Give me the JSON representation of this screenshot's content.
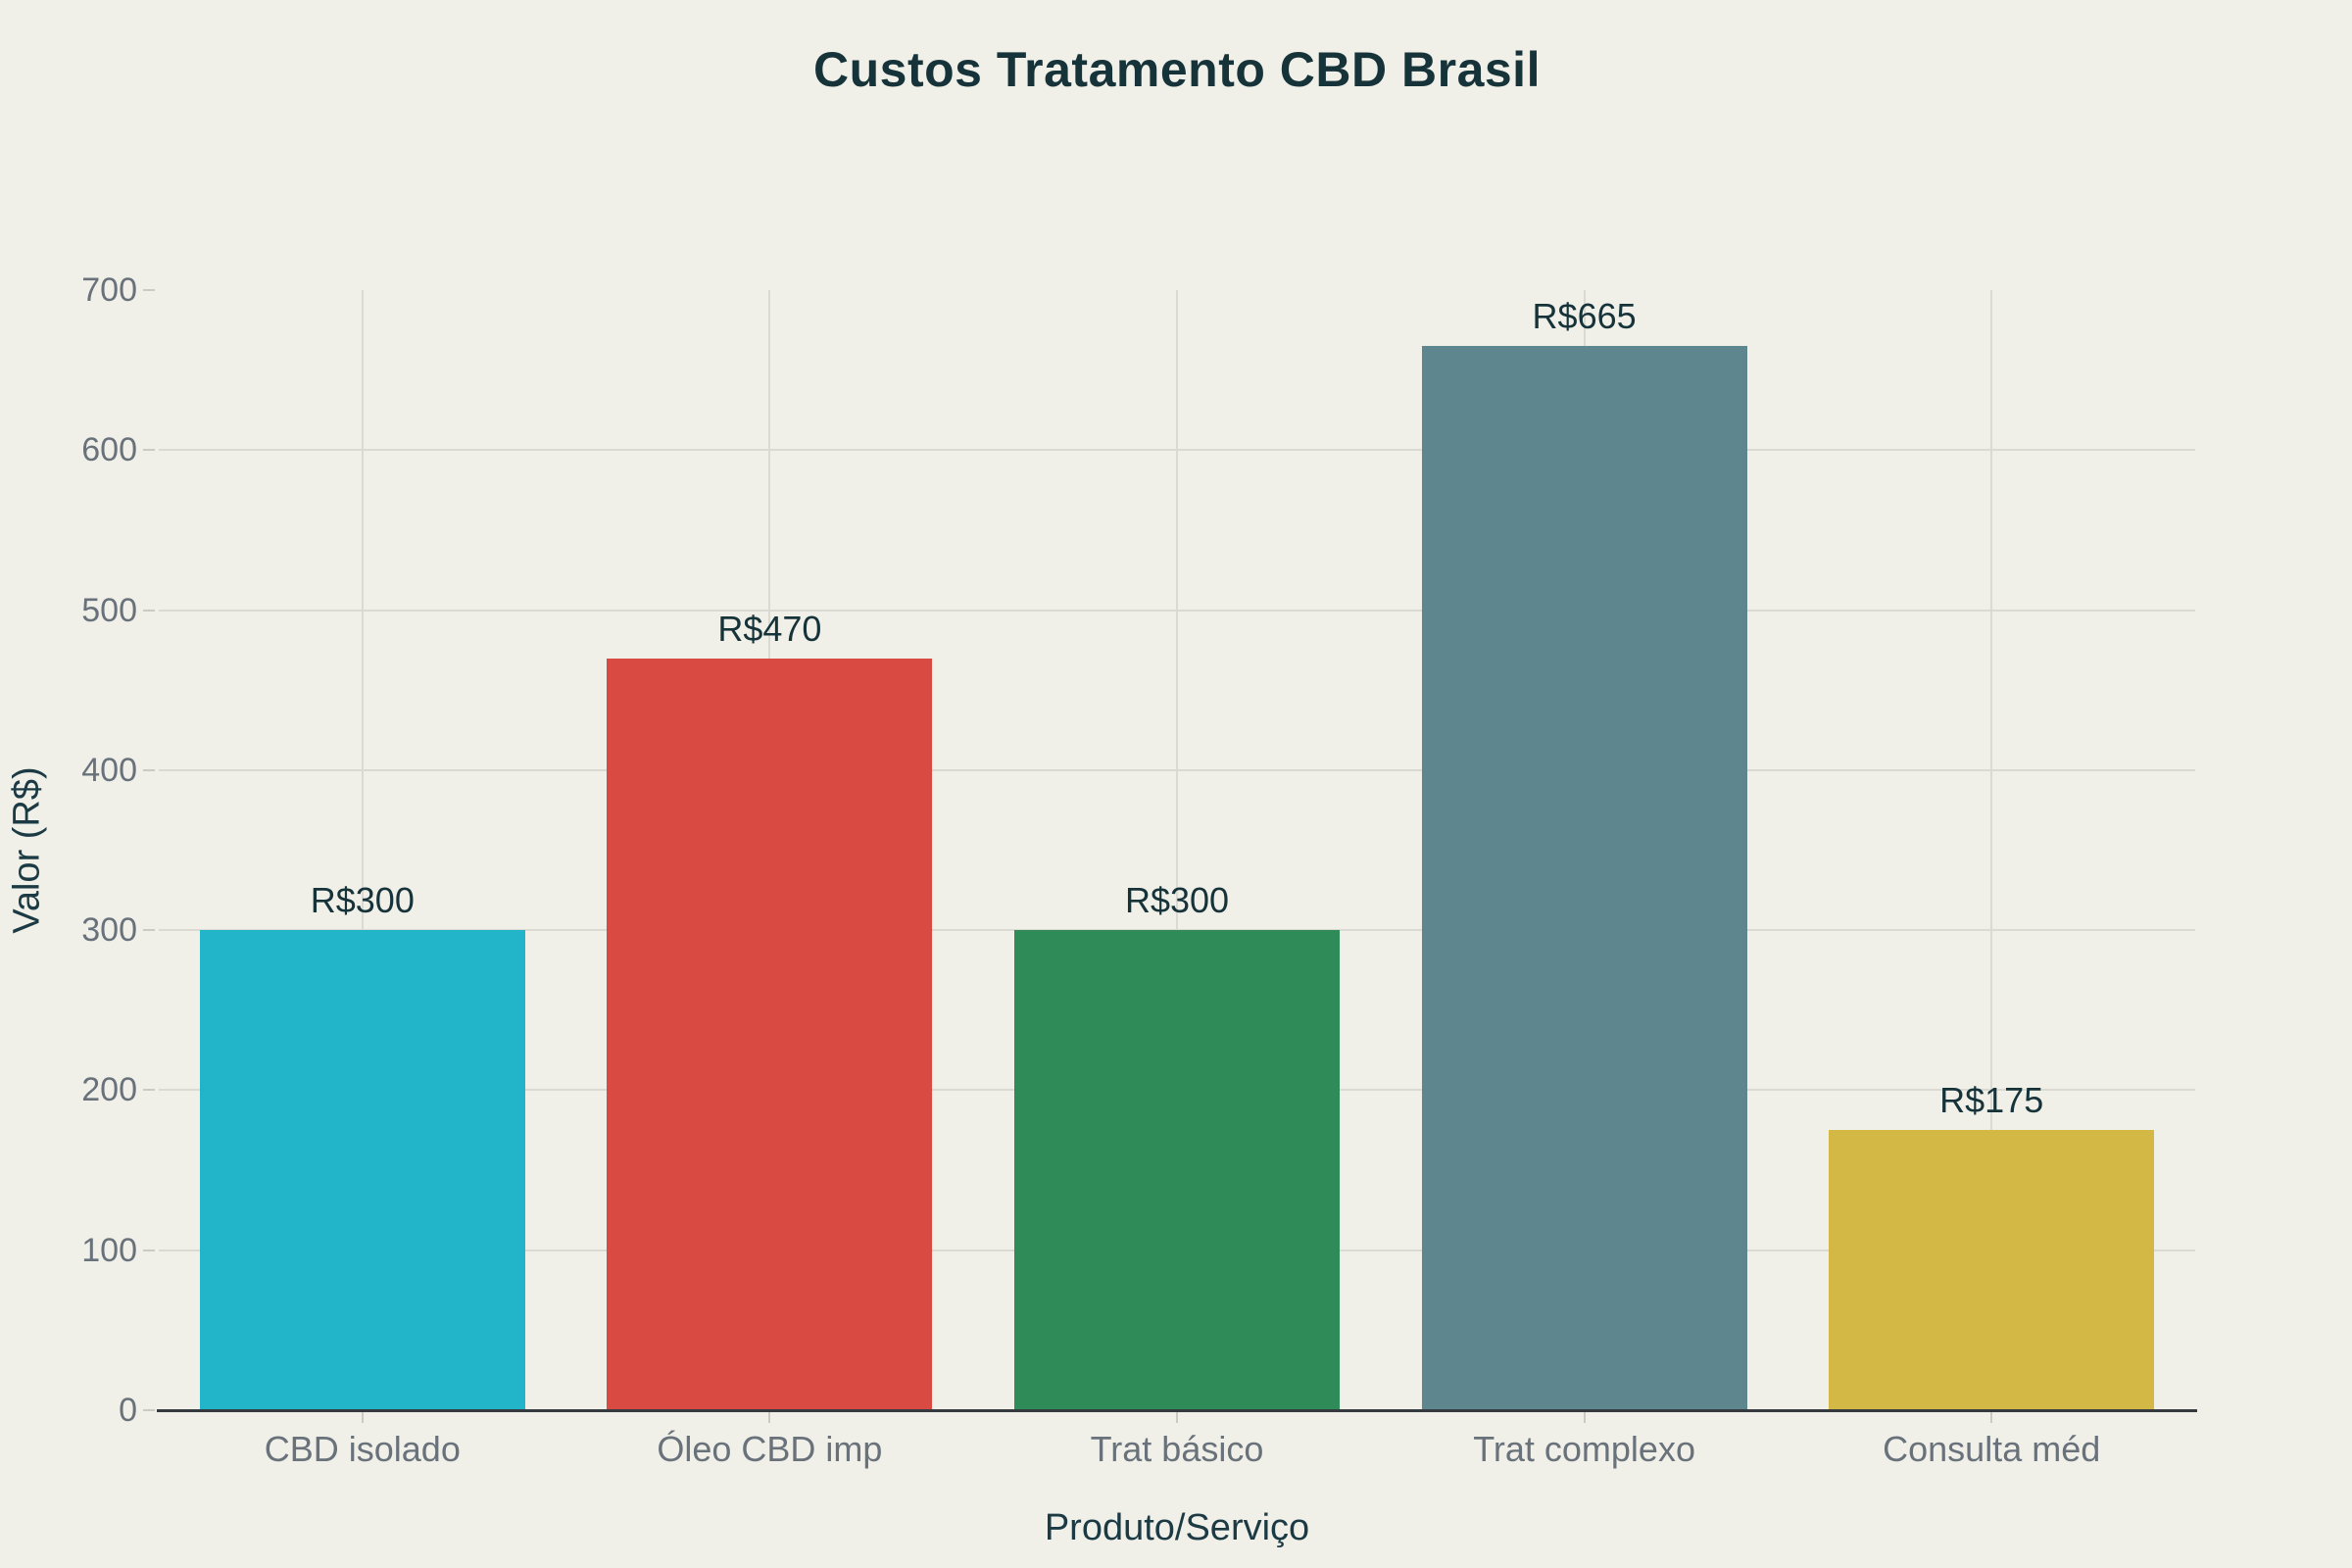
{
  "title": "Custos Tratamento CBD Brasil",
  "chart_data": {
    "type": "bar",
    "title": "Custos Tratamento CBD Brasil",
    "xlabel": "Produto/Serviço",
    "ylabel": "Valor (R$)",
    "categories": [
      "CBD isolado",
      "Óleo CBD imp",
      "Trat básico",
      "Trat complexo",
      "Consulta méd"
    ],
    "values": [
      300,
      470,
      300,
      665,
      175
    ],
    "value_labels": [
      "R$300",
      "R$470",
      "R$300",
      "R$665",
      "R$175"
    ],
    "bar_colors": [
      "#22B5C9",
      "#D94A43",
      "#2F8C58",
      "#5D868F",
      "#D3B845"
    ],
    "ylim": [
      0,
      700
    ],
    "yticks": [
      0,
      100,
      200,
      300,
      400,
      500,
      600,
      700
    ],
    "grid": true,
    "legend": false
  },
  "colors": {
    "background": "#F0F0E9",
    "title_text": "#17333A",
    "axis_title_text": "#1C3A44",
    "tick_text": "#69727B",
    "gridline": "#DBDAD2",
    "tick_mark": "#CCCAC2",
    "axis_line": "#343A3E"
  }
}
